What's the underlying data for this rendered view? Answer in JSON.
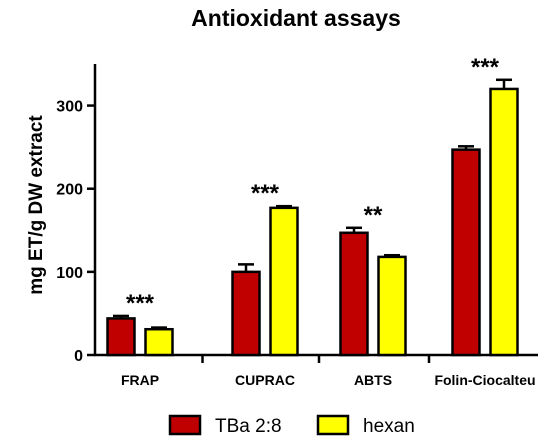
{
  "chart_data": {
    "type": "bar",
    "title": "Antioxidant assays",
    "ylabel": "mg ET/g DW extract",
    "xlabel": "",
    "ylim": [
      0,
      350
    ],
    "yticks": [
      0,
      100,
      200,
      300
    ],
    "categories": [
      "FRAP",
      "CUPRAC",
      "ABTS",
      "Folin-Ciocalteu"
    ],
    "series": [
      {
        "name": "TBa 2:8",
        "color": "#c00000",
        "values": [
          44,
          100,
          147,
          247
        ],
        "errors": [
          3,
          9,
          6,
          4
        ]
      },
      {
        "name": "hexan",
        "color": "#ffff00",
        "values": [
          31,
          177,
          118,
          320
        ],
        "errors": [
          2,
          2,
          2,
          11
        ]
      }
    ],
    "significance": [
      "***",
      "***",
      "**",
      "***"
    ],
    "legend_position": "bottom",
    "grid": false
  }
}
